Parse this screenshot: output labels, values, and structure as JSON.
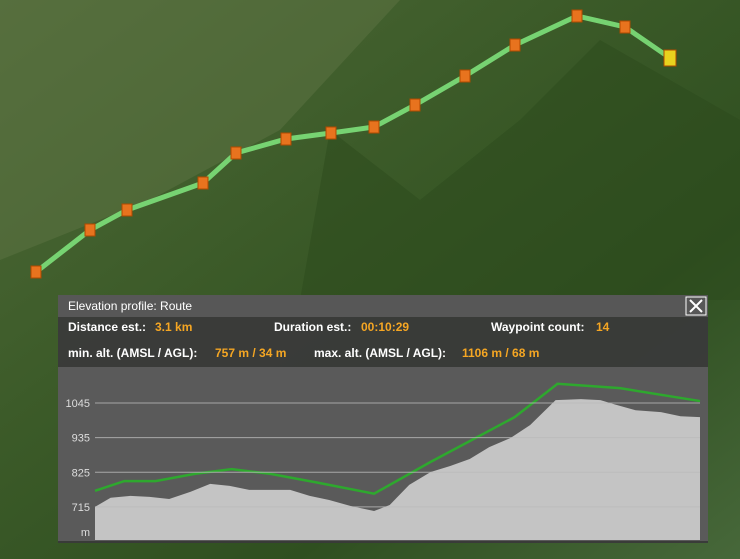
{
  "panel": {
    "title": "Elevation profile: Route"
  },
  "stats": [
    {
      "label": "Distance est.:",
      "value": "3.1 km"
    },
    {
      "label": "Duration est.:",
      "value": "00:10:29"
    },
    {
      "label": "Waypoint count:",
      "value": "14"
    },
    {
      "label": "min. alt. (AMSL / AGL):",
      "value": "757 m / 34 m"
    },
    {
      "label": "max. alt. (AMSL / AGL):",
      "value": "1106 m / 68 m"
    }
  ],
  "chart_data": {
    "type": "area",
    "ylabel": "m",
    "xlim": [
      0,
      3.1
    ],
    "ylim": [
      610,
      1156
    ],
    "yticks": [
      715,
      825,
      935,
      1045
    ],
    "grid": true,
    "series": [
      {
        "kind": "terrain",
        "color": "#c4c4c4",
        "x": [
          0,
          0.08,
          0.18,
          0.28,
          0.38,
          0.49,
          0.59,
          0.69,
          0.79,
          1.0,
          1.1,
          1.2,
          1.31,
          1.43,
          1.51,
          1.61,
          1.72,
          1.82,
          1.92,
          2.02,
          2.13,
          2.23,
          2.36,
          2.49,
          2.59,
          2.66,
          2.77,
          2.9,
          3.0,
          3.1
        ],
        "values": [
          715,
          744,
          750,
          747,
          740,
          763,
          788,
          782,
          769,
          769,
          750,
          737,
          718,
          702,
          721,
          785,
          826,
          845,
          867,
          905,
          934,
          975,
          1054,
          1057,
          1054,
          1041,
          1022,
          1016,
          1003,
          1000
        ]
      },
      {
        "kind": "route",
        "color": "#2ea82e",
        "x": [
          0,
          0.15,
          0.31,
          0.51,
          0.7,
          0.9,
          1.15,
          1.43,
          1.72,
          1.92,
          2.15,
          2.37,
          2.69,
          3.1
        ],
        "values": [
          766,
          797,
          797,
          820,
          835,
          820,
          791,
          757,
          858,
          924,
          1000,
          1106,
          1092,
          1051
        ]
      }
    ]
  }
}
